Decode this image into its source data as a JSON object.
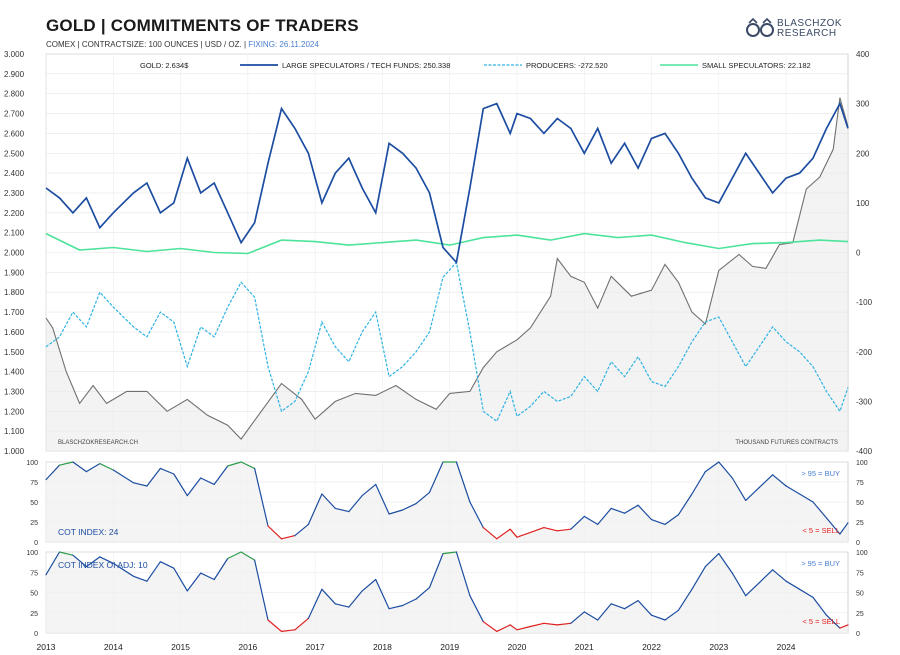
{
  "header": {
    "title": "GOLD | COMMITMENTS OF TRADERS",
    "subtitle_main": "COMEX | CONTRACTSIZE: 100 OUNCES | USD / OZ. | ",
    "subtitle_fixing": "FIXING: 26.11.2024",
    "logo_line1": "BLASCHZOK",
    "logo_line2": "RESEARCH"
  },
  "colors": {
    "gold": "#707070",
    "large_specs": "#1c4da1",
    "producers": "#2fb3e3",
    "small_specs": "#4de39a",
    "buy_zone": "#2e9c4a",
    "sell_zone": "#e02020",
    "buy_label": "#4a7fd0",
    "sell_label": "#e02020",
    "index_label": "#1c4da1"
  },
  "chart_data": [
    {
      "type": "line",
      "panel": "main",
      "left_axis_ticks": [
        "3.000",
        "2.900",
        "2.800",
        "2.700",
        "2.600",
        "2.500",
        "2.400",
        "2.300",
        "2.200",
        "2.100",
        "2.000",
        "1.900",
        "1.800",
        "1.700",
        "1.600",
        "1.500",
        "1.400",
        "1.300",
        "1.200",
        "1.100",
        "1.000"
      ],
      "left_ylim": [
        1000,
        3000
      ],
      "right_axis_ticks": [
        "400",
        "300",
        "200",
        "100",
        "0",
        "-100",
        "-200",
        "-300",
        "-400"
      ],
      "right_ylim": [
        -400,
        400
      ],
      "x_ticks": [
        "2013",
        "2014",
        "2015",
        "2016",
        "2017",
        "2018",
        "2019",
        "2020",
        "2021",
        "2022",
        "2023",
        "2024"
      ],
      "xlim": [
        2013.0,
        2024.92
      ],
      "grid": true,
      "legend": [
        {
          "key": "gold",
          "label": "GOLD: 2.634$"
        },
        {
          "key": "large",
          "label": "LARGE SPECULATORS / TECH FUNDS: 250.338"
        },
        {
          "key": "producers",
          "label": "PRODUCERS: -272.520"
        },
        {
          "key": "small",
          "label": "SMALL SPECULATORS: 22.182"
        }
      ],
      "source_note": "BLASCHZOKRESEARCH.CH",
      "unit_note": "THOUSAND  FUTURES CONTRACTS",
      "series": [
        {
          "key": "gold",
          "axis": "left",
          "x": [
            2013.0,
            2013.1,
            2013.3,
            2013.5,
            2013.7,
            2013.9,
            2014.2,
            2014.5,
            2014.8,
            2015.1,
            2015.4,
            2015.7,
            2015.9,
            2016.2,
            2016.5,
            2016.8,
            2017.0,
            2017.3,
            2017.6,
            2017.9,
            2018.2,
            2018.5,
            2018.8,
            2019.0,
            2019.3,
            2019.5,
            2019.7,
            2020.0,
            2020.2,
            2020.5,
            2020.6,
            2020.8,
            2021.0,
            2021.2,
            2021.4,
            2021.7,
            2022.0,
            2022.2,
            2022.4,
            2022.6,
            2022.8,
            2023.0,
            2023.3,
            2023.5,
            2023.7,
            2023.9,
            2024.1,
            2024.3,
            2024.5,
            2024.7,
            2024.8,
            2024.92
          ],
          "y": [
            1670,
            1620,
            1400,
            1240,
            1330,
            1240,
            1300,
            1300,
            1200,
            1260,
            1180,
            1130,
            1060,
            1200,
            1340,
            1260,
            1160,
            1250,
            1290,
            1280,
            1330,
            1260,
            1210,
            1290,
            1300,
            1420,
            1500,
            1560,
            1620,
            1780,
            1970,
            1880,
            1850,
            1720,
            1880,
            1780,
            1810,
            1940,
            1850,
            1700,
            1640,
            1910,
            1990,
            1930,
            1920,
            2040,
            2050,
            2320,
            2380,
            2520,
            2780,
            2634
          ]
        },
        {
          "key": "large",
          "axis": "right",
          "x": [
            2013.0,
            2013.2,
            2013.4,
            2013.6,
            2013.8,
            2014.0,
            2014.3,
            2014.5,
            2014.7,
            2014.9,
            2015.1,
            2015.3,
            2015.5,
            2015.7,
            2015.9,
            2016.1,
            2016.3,
            2016.5,
            2016.7,
            2016.9,
            2017.1,
            2017.3,
            2017.5,
            2017.7,
            2017.9,
            2018.1,
            2018.3,
            2018.5,
            2018.7,
            2018.9,
            2019.1,
            2019.3,
            2019.5,
            2019.7,
            2019.9,
            2020.0,
            2020.2,
            2020.4,
            2020.6,
            2020.8,
            2021.0,
            2021.2,
            2021.4,
            2021.6,
            2021.8,
            2022.0,
            2022.2,
            2022.4,
            2022.6,
            2022.8,
            2023.0,
            2023.2,
            2023.4,
            2023.6,
            2023.8,
            2024.0,
            2024.2,
            2024.4,
            2024.6,
            2024.8,
            2024.92
          ],
          "y": [
            130,
            110,
            80,
            110,
            50,
            80,
            120,
            140,
            80,
            100,
            190,
            120,
            140,
            80,
            20,
            60,
            180,
            290,
            250,
            200,
            100,
            160,
            190,
            130,
            80,
            220,
            200,
            170,
            120,
            10,
            -20,
            130,
            290,
            300,
            240,
            280,
            270,
            240,
            270,
            250,
            200,
            250,
            180,
            220,
            170,
            230,
            240,
            200,
            150,
            110,
            100,
            150,
            200,
            160,
            120,
            150,
            160,
            190,
            250,
            300,
            250
          ]
        },
        {
          "key": "producers",
          "axis": "right",
          "x": [
            2013.0,
            2013.2,
            2013.4,
            2013.6,
            2013.8,
            2014.0,
            2014.3,
            2014.5,
            2014.7,
            2014.9,
            2015.1,
            2015.3,
            2015.5,
            2015.7,
            2015.9,
            2016.1,
            2016.3,
            2016.5,
            2016.7,
            2016.9,
            2017.1,
            2017.3,
            2017.5,
            2017.7,
            2017.9,
            2018.1,
            2018.3,
            2018.5,
            2018.7,
            2018.9,
            2019.1,
            2019.3,
            2019.5,
            2019.7,
            2019.9,
            2020.0,
            2020.2,
            2020.4,
            2020.6,
            2020.8,
            2021.0,
            2021.2,
            2021.4,
            2021.6,
            2021.8,
            2022.0,
            2022.2,
            2022.4,
            2022.6,
            2022.8,
            2023.0,
            2023.2,
            2023.4,
            2023.6,
            2023.8,
            2024.0,
            2024.2,
            2024.4,
            2024.6,
            2024.8,
            2024.92
          ],
          "y": [
            -190,
            -170,
            -120,
            -150,
            -80,
            -110,
            -150,
            -170,
            -120,
            -140,
            -230,
            -150,
            -170,
            -110,
            -60,
            -90,
            -230,
            -320,
            -300,
            -240,
            -140,
            -190,
            -220,
            -160,
            -120,
            -250,
            -230,
            -200,
            -160,
            -50,
            -20,
            -160,
            -320,
            -340,
            -280,
            -330,
            -310,
            -280,
            -300,
            -290,
            -250,
            -280,
            -220,
            -250,
            -210,
            -260,
            -270,
            -230,
            -180,
            -140,
            -130,
            -180,
            -230,
            -190,
            -150,
            -180,
            -200,
            -230,
            -280,
            -320,
            -272
          ]
        },
        {
          "key": "small",
          "axis": "right",
          "x": [
            2013.0,
            2013.5,
            2014.0,
            2014.5,
            2015.0,
            2015.5,
            2016.0,
            2016.5,
            2017.0,
            2017.5,
            2018.0,
            2018.5,
            2019.0,
            2019.5,
            2020.0,
            2020.5,
            2021.0,
            2021.5,
            2022.0,
            2022.5,
            2023.0,
            2023.5,
            2024.0,
            2024.5,
            2024.92
          ],
          "y": [
            38,
            5,
            10,
            2,
            8,
            0,
            -2,
            25,
            22,
            15,
            20,
            25,
            15,
            30,
            35,
            25,
            38,
            30,
            35,
            20,
            8,
            18,
            20,
            25,
            22
          ]
        }
      ]
    },
    {
      "type": "line",
      "panel": "index1",
      "label": "COT INDEX: 24",
      "buy_rule": "> 95 = BUY",
      "sell_rule": "< 5 = SELL",
      "ylim": [
        0,
        100
      ],
      "y_ticks": [
        "100",
        "75",
        "50",
        "25",
        "0"
      ],
      "buy_threshold": 95,
      "sell_threshold": 5,
      "x": [
        2013.0,
        2013.2,
        2013.4,
        2013.6,
        2013.8,
        2014.0,
        2014.3,
        2014.5,
        2014.7,
        2014.9,
        2015.1,
        2015.3,
        2015.5,
        2015.7,
        2015.9,
        2016.1,
        2016.3,
        2016.5,
        2016.7,
        2016.9,
        2017.1,
        2017.3,
        2017.5,
        2017.7,
        2017.9,
        2018.1,
        2018.3,
        2018.5,
        2018.7,
        2018.9,
        2019.1,
        2019.3,
        2019.5,
        2019.7,
        2019.9,
        2020.0,
        2020.2,
        2020.4,
        2020.6,
        2020.8,
        2021.0,
        2021.2,
        2021.4,
        2021.6,
        2021.8,
        2022.0,
        2022.2,
        2022.4,
        2022.6,
        2022.8,
        2023.0,
        2023.2,
        2023.4,
        2023.6,
        2023.8,
        2024.0,
        2024.2,
        2024.4,
        2024.6,
        2024.8,
        2024.92
      ],
      "y": [
        78,
        96,
        100,
        88,
        98,
        90,
        74,
        70,
        92,
        85,
        58,
        80,
        72,
        95,
        100,
        92,
        20,
        4,
        8,
        22,
        60,
        42,
        38,
        58,
        72,
        35,
        40,
        48,
        62,
        100,
        100,
        50,
        18,
        4,
        16,
        6,
        12,
        18,
        14,
        16,
        32,
        22,
        42,
        36,
        46,
        28,
        22,
        34,
        60,
        88,
        100,
        80,
        52,
        68,
        84,
        70,
        60,
        50,
        30,
        10,
        24
      ]
    },
    {
      "type": "line",
      "panel": "index2",
      "label": "COT INDEX OI ADJ: 10",
      "buy_rule": "> 95 = BUY",
      "sell_rule": "< 5 = SELL",
      "ylim": [
        0,
        100
      ],
      "y_ticks": [
        "100",
        "75",
        "50",
        "25",
        "0"
      ],
      "buy_threshold": 95,
      "sell_threshold": 5,
      "x": [
        2013.0,
        2013.2,
        2013.4,
        2013.6,
        2013.8,
        2014.0,
        2014.3,
        2014.5,
        2014.7,
        2014.9,
        2015.1,
        2015.3,
        2015.5,
        2015.7,
        2015.9,
        2016.1,
        2016.3,
        2016.5,
        2016.7,
        2016.9,
        2017.1,
        2017.3,
        2017.5,
        2017.7,
        2017.9,
        2018.1,
        2018.3,
        2018.5,
        2018.7,
        2018.9,
        2019.1,
        2019.3,
        2019.5,
        2019.7,
        2019.9,
        2020.0,
        2020.2,
        2020.4,
        2020.6,
        2020.8,
        2021.0,
        2021.2,
        2021.4,
        2021.6,
        2021.8,
        2022.0,
        2022.2,
        2022.4,
        2022.6,
        2022.8,
        2023.0,
        2023.2,
        2023.4,
        2023.6,
        2023.8,
        2024.0,
        2024.2,
        2024.4,
        2024.6,
        2024.8,
        2024.92
      ],
      "y": [
        72,
        100,
        96,
        82,
        94,
        86,
        70,
        64,
        88,
        80,
        52,
        74,
        66,
        92,
        100,
        90,
        16,
        2,
        4,
        18,
        54,
        36,
        32,
        52,
        66,
        30,
        34,
        42,
        56,
        98,
        100,
        46,
        14,
        2,
        10,
        4,
        8,
        12,
        10,
        12,
        26,
        16,
        36,
        30,
        40,
        22,
        16,
        28,
        54,
        82,
        98,
        74,
        46,
        62,
        78,
        64,
        54,
        44,
        22,
        6,
        10
      ]
    }
  ]
}
